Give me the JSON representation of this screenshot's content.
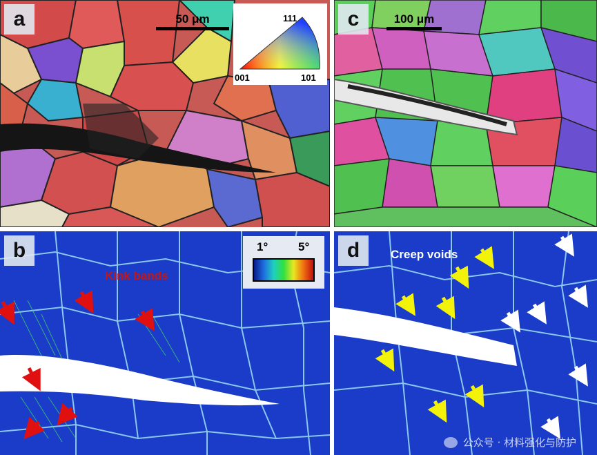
{
  "panels": {
    "a": {
      "label": "a",
      "scale": "50 μm"
    },
    "b": {
      "label": "b",
      "annotation": "Kink bands"
    },
    "c": {
      "label": "c",
      "scale": "100 μm"
    },
    "d": {
      "label": "d",
      "annotation": "Creep voids"
    }
  },
  "ipf_legend": {
    "top": "111",
    "left": "001",
    "right": "101"
  },
  "colorbar": {
    "min": "1°",
    "max": "5°"
  },
  "watermark": "公众号 · 材料强化与防护",
  "colors": {
    "arrow_red": "#e01010",
    "arrow_yellow": "#f2f20a",
    "arrow_white": "#ffffff",
    "kam_blue": "#1a3cc8",
    "annotation_red": "#c01818"
  }
}
